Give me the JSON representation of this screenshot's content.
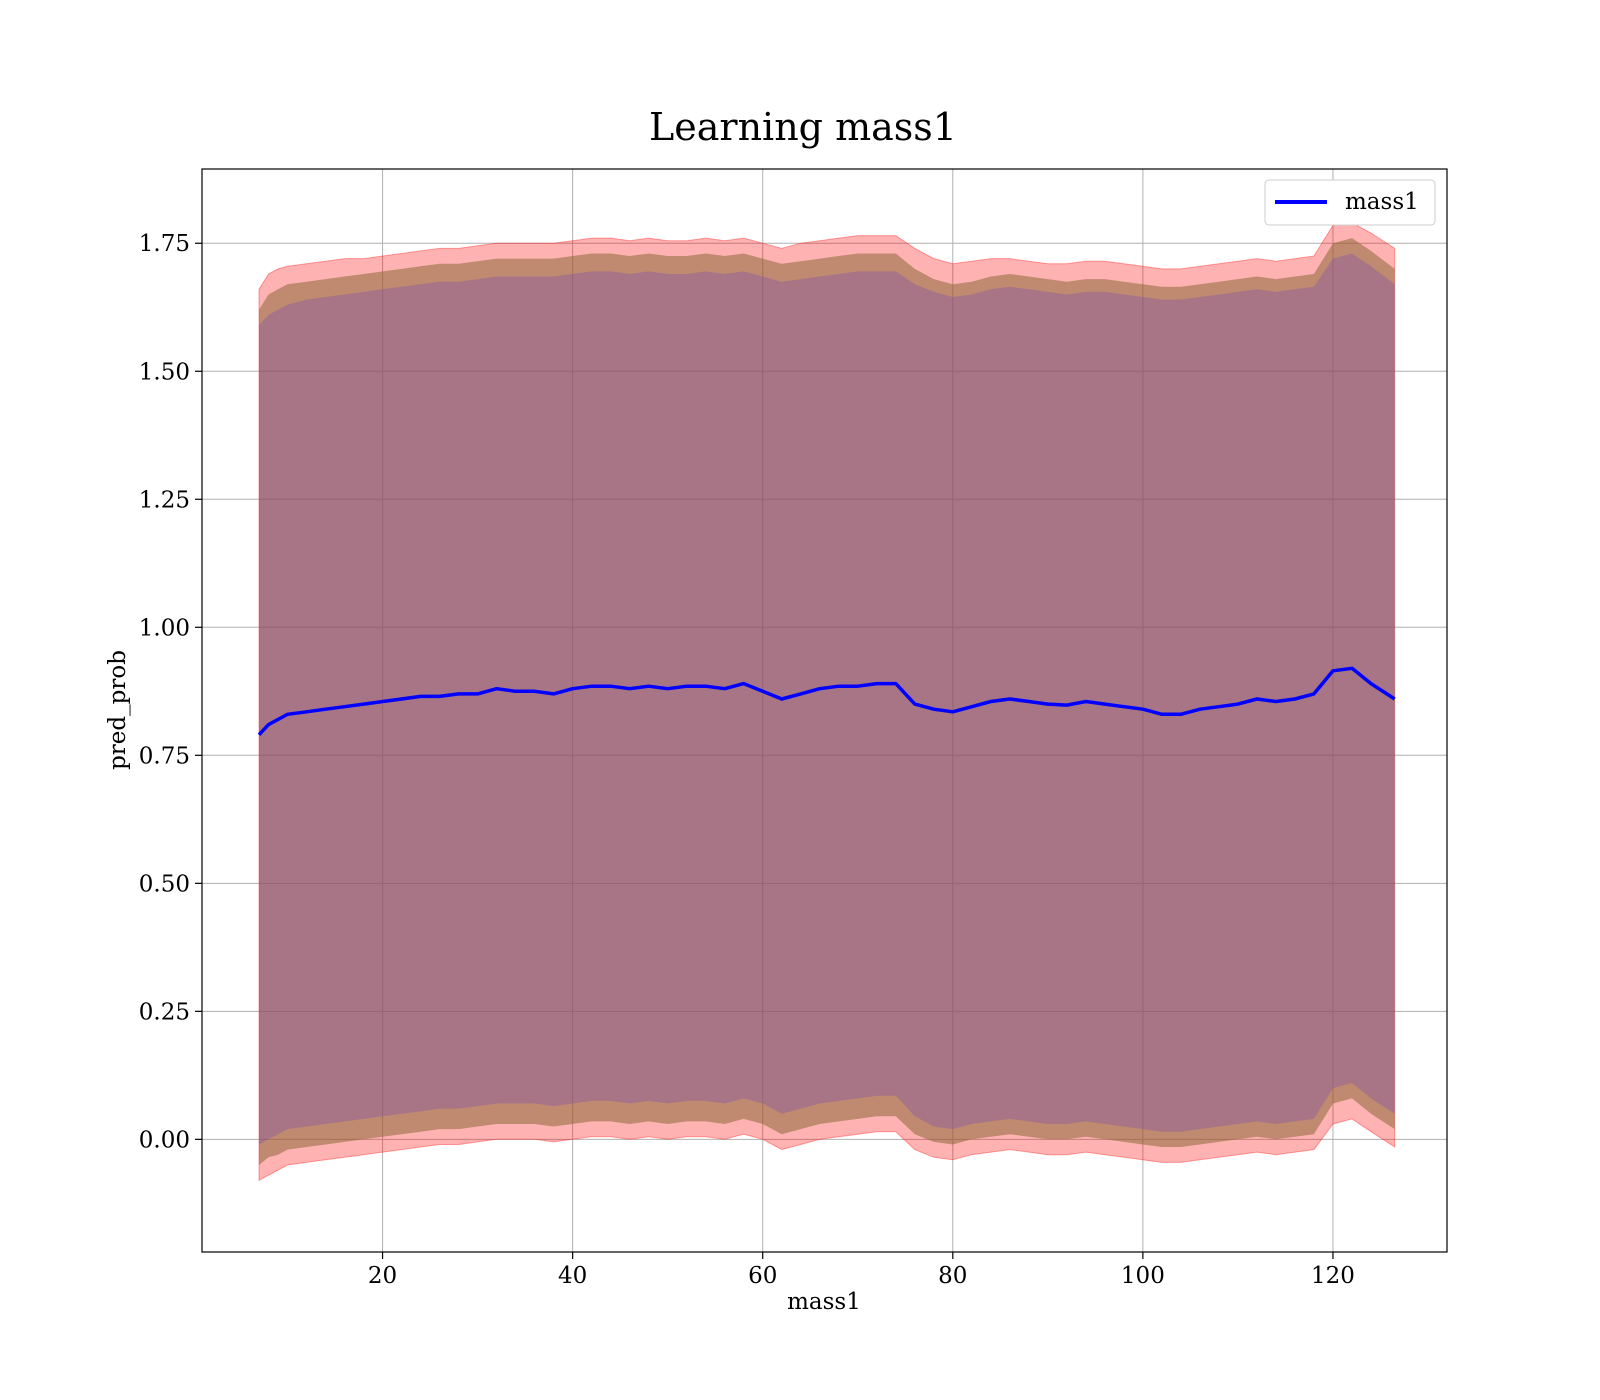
{
  "chart_data": {
    "type": "line",
    "title": "Learning mass1",
    "xlabel": "mass1",
    "ylabel": "pred_prob",
    "xlim": [
      1,
      132
    ],
    "ylim": [
      -0.22,
      1.895
    ],
    "xticks": [
      20,
      40,
      60,
      80,
      100,
      120
    ],
    "yticks": [
      0.0,
      0.25,
      0.5,
      0.75,
      1.0,
      1.25,
      1.5,
      1.75
    ],
    "ytick_labels": [
      "0.00",
      "0.25",
      "0.50",
      "0.75",
      "1.00",
      "1.25",
      "1.50",
      "1.75"
    ],
    "grid": true,
    "legend": {
      "placement": "top-right",
      "entries": [
        "mass1"
      ]
    },
    "colors": {
      "line": "#0000ff",
      "band_outer": "#ff0000",
      "band_mid": "#8b6a3a",
      "band_inner": "#7a4cb0"
    },
    "x": [
      7,
      8,
      9,
      10,
      12,
      14,
      16,
      18,
      20,
      22,
      24,
      26,
      28,
      30,
      32,
      34,
      36,
      38,
      40,
      42,
      44,
      46,
      48,
      50,
      52,
      54,
      56,
      58,
      60,
      62,
      64,
      66,
      68,
      70,
      72,
      74,
      76,
      78,
      80,
      82,
      84,
      86,
      88,
      90,
      92,
      94,
      96,
      98,
      100,
      102,
      104,
      106,
      108,
      110,
      112,
      114,
      116,
      118,
      120,
      122,
      124,
      126.5
    ],
    "series": [
      {
        "name": "mass1",
        "values": [
          0.79,
          0.81,
          0.82,
          0.83,
          0.835,
          0.84,
          0.845,
          0.85,
          0.855,
          0.86,
          0.865,
          0.865,
          0.87,
          0.87,
          0.88,
          0.875,
          0.875,
          0.87,
          0.88,
          0.885,
          0.885,
          0.88,
          0.885,
          0.88,
          0.885,
          0.885,
          0.88,
          0.89,
          0.875,
          0.86,
          0.87,
          0.88,
          0.885,
          0.885,
          0.89,
          0.89,
          0.85,
          0.84,
          0.835,
          0.845,
          0.855,
          0.86,
          0.855,
          0.85,
          0.848,
          0.855,
          0.85,
          0.845,
          0.84,
          0.83,
          0.83,
          0.84,
          0.845,
          0.85,
          0.86,
          0.855,
          0.86,
          0.87,
          0.915,
          0.92,
          0.89,
          0.86
        ],
        "band_outer_upper": [
          1.66,
          1.69,
          1.7,
          1.705,
          1.71,
          1.715,
          1.72,
          1.72,
          1.725,
          1.73,
          1.735,
          1.74,
          1.74,
          1.745,
          1.75,
          1.75,
          1.75,
          1.75,
          1.755,
          1.76,
          1.76,
          1.755,
          1.76,
          1.755,
          1.755,
          1.76,
          1.755,
          1.76,
          1.75,
          1.74,
          1.75,
          1.755,
          1.76,
          1.765,
          1.765,
          1.765,
          1.74,
          1.72,
          1.71,
          1.715,
          1.72,
          1.72,
          1.715,
          1.71,
          1.71,
          1.715,
          1.715,
          1.71,
          1.705,
          1.7,
          1.7,
          1.705,
          1.71,
          1.715,
          1.72,
          1.715,
          1.72,
          1.725,
          1.785,
          1.79,
          1.77,
          1.74
        ],
        "band_outer_lower": [
          -0.08,
          -0.07,
          -0.06,
          -0.05,
          -0.045,
          -0.04,
          -0.035,
          -0.03,
          -0.025,
          -0.02,
          -0.015,
          -0.01,
          -0.01,
          -0.005,
          0.0,
          0.0,
          0.0,
          -0.005,
          0.0,
          0.005,
          0.005,
          0.0,
          0.005,
          0.0,
          0.005,
          0.005,
          0.0,
          0.01,
          0.0,
          -0.02,
          -0.01,
          0.0,
          0.005,
          0.01,
          0.015,
          0.015,
          -0.02,
          -0.035,
          -0.04,
          -0.03,
          -0.025,
          -0.02,
          -0.025,
          -0.03,
          -0.03,
          -0.025,
          -0.03,
          -0.035,
          -0.04,
          -0.045,
          -0.045,
          -0.04,
          -0.035,
          -0.03,
          -0.025,
          -0.03,
          -0.025,
          -0.02,
          0.03,
          0.04,
          0.015,
          -0.015
        ],
        "band_mid_upper": [
          1.62,
          1.65,
          1.66,
          1.67,
          1.675,
          1.68,
          1.685,
          1.69,
          1.695,
          1.7,
          1.705,
          1.71,
          1.71,
          1.715,
          1.72,
          1.72,
          1.72,
          1.72,
          1.725,
          1.73,
          1.73,
          1.725,
          1.73,
          1.725,
          1.725,
          1.73,
          1.725,
          1.73,
          1.72,
          1.71,
          1.715,
          1.72,
          1.725,
          1.73,
          1.73,
          1.73,
          1.7,
          1.68,
          1.67,
          1.675,
          1.685,
          1.69,
          1.685,
          1.68,
          1.675,
          1.68,
          1.68,
          1.675,
          1.67,
          1.665,
          1.665,
          1.67,
          1.675,
          1.68,
          1.685,
          1.68,
          1.685,
          1.69,
          1.75,
          1.76,
          1.735,
          1.7
        ],
        "band_mid_lower": [
          -0.05,
          -0.035,
          -0.03,
          -0.02,
          -0.015,
          -0.01,
          -0.005,
          0.0,
          0.005,
          0.01,
          0.015,
          0.02,
          0.02,
          0.025,
          0.03,
          0.03,
          0.03,
          0.025,
          0.03,
          0.035,
          0.035,
          0.03,
          0.035,
          0.03,
          0.035,
          0.035,
          0.03,
          0.04,
          0.03,
          0.01,
          0.02,
          0.03,
          0.035,
          0.04,
          0.045,
          0.045,
          0.01,
          -0.005,
          -0.01,
          0.0,
          0.005,
          0.01,
          0.005,
          0.0,
          0.0,
          0.005,
          0.0,
          -0.005,
          -0.01,
          -0.015,
          -0.015,
          -0.01,
          -0.005,
          0.0,
          0.005,
          0.0,
          0.005,
          0.01,
          0.07,
          0.08,
          0.05,
          0.02
        ],
        "band_inner_upper": [
          1.59,
          1.61,
          1.62,
          1.63,
          1.64,
          1.645,
          1.65,
          1.655,
          1.66,
          1.665,
          1.67,
          1.675,
          1.675,
          1.68,
          1.685,
          1.685,
          1.685,
          1.685,
          1.69,
          1.695,
          1.695,
          1.69,
          1.695,
          1.69,
          1.69,
          1.695,
          1.69,
          1.695,
          1.685,
          1.675,
          1.68,
          1.685,
          1.69,
          1.695,
          1.695,
          1.695,
          1.67,
          1.655,
          1.645,
          1.65,
          1.66,
          1.665,
          1.66,
          1.655,
          1.65,
          1.655,
          1.655,
          1.65,
          1.645,
          1.64,
          1.64,
          1.645,
          1.65,
          1.655,
          1.66,
          1.655,
          1.66,
          1.665,
          1.72,
          1.73,
          1.705,
          1.67
        ],
        "band_inner_lower": [
          -0.01,
          0.0,
          0.01,
          0.02,
          0.025,
          0.03,
          0.035,
          0.04,
          0.045,
          0.05,
          0.055,
          0.06,
          0.06,
          0.065,
          0.07,
          0.07,
          0.07,
          0.065,
          0.07,
          0.075,
          0.075,
          0.07,
          0.075,
          0.07,
          0.075,
          0.075,
          0.07,
          0.08,
          0.07,
          0.05,
          0.06,
          0.07,
          0.075,
          0.08,
          0.085,
          0.085,
          0.045,
          0.025,
          0.02,
          0.03,
          0.035,
          0.04,
          0.035,
          0.03,
          0.03,
          0.035,
          0.03,
          0.025,
          0.02,
          0.015,
          0.015,
          0.02,
          0.025,
          0.03,
          0.035,
          0.03,
          0.035,
          0.04,
          0.1,
          0.11,
          0.08,
          0.05
        ]
      }
    ]
  }
}
